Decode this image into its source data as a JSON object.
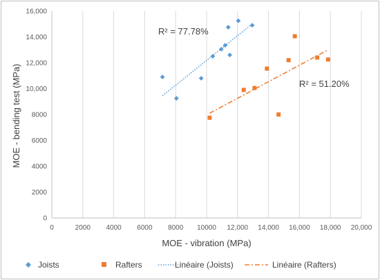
{
  "chart_data": {
    "type": "scatter",
    "xlabel": "MOE - vibration (MPa)",
    "ylabel": "MOE - bending test (MPa)",
    "xlim": [
      0,
      20000
    ],
    "ylim": [
      0,
      16000
    ],
    "x_ticks": [
      0,
      2000,
      4000,
      6000,
      8000,
      10000,
      12000,
      14000,
      16000,
      18000,
      20000
    ],
    "x_tick_labels": [
      "0",
      "2000",
      "4000",
      "6000",
      "8000",
      "10000",
      "12,000",
      "14,000",
      "16,000",
      "18,000",
      "20,000"
    ],
    "y_ticks": [
      0,
      2000,
      4000,
      6000,
      8000,
      10000,
      12000,
      14000,
      16000
    ],
    "y_tick_labels": [
      "0",
      "2000",
      "4000",
      "6000",
      "8000",
      "10,000",
      "12,000",
      "14,000",
      "16,000"
    ],
    "grid": "vertical",
    "legend_position": "bottom",
    "series": [
      {
        "name": "Joists",
        "marker": "diamond",
        "color": "#5b9bd5",
        "points": [
          [
            7150,
            10900
          ],
          [
            8050,
            9250
          ],
          [
            9650,
            10800
          ],
          [
            10400,
            12500
          ],
          [
            10950,
            13050
          ],
          [
            11200,
            13350
          ],
          [
            11400,
            14750
          ],
          [
            11500,
            12600
          ],
          [
            12050,
            15250
          ],
          [
            12950,
            14900
          ]
        ]
      },
      {
        "name": "Rafters",
        "marker": "square",
        "color": "#ed7d31",
        "points": [
          [
            10200,
            7750
          ],
          [
            12400,
            9900
          ],
          [
            13100,
            10050
          ],
          [
            13900,
            11550
          ],
          [
            14650,
            8000
          ],
          [
            15300,
            12200
          ],
          [
            15700,
            14050
          ],
          [
            17150,
            12400
          ],
          [
            17850,
            12250
          ]
        ]
      }
    ],
    "trendlines": [
      {
        "name": "Linéaire (Joists)",
        "style": "dotted",
        "color": "#5b9bd5",
        "x_start": 7150,
        "y_start": 9450,
        "x_end": 12950,
        "y_end": 15000,
        "r2_label": "R² = 77.78%"
      },
      {
        "name": "Linéaire (Rafters)",
        "style": "dash-dot",
        "color": "#ed7d31",
        "x_start": 10200,
        "y_start": 8100,
        "x_end": 17850,
        "y_end": 13000,
        "r2_label": "R² = 51.20%"
      }
    ]
  }
}
